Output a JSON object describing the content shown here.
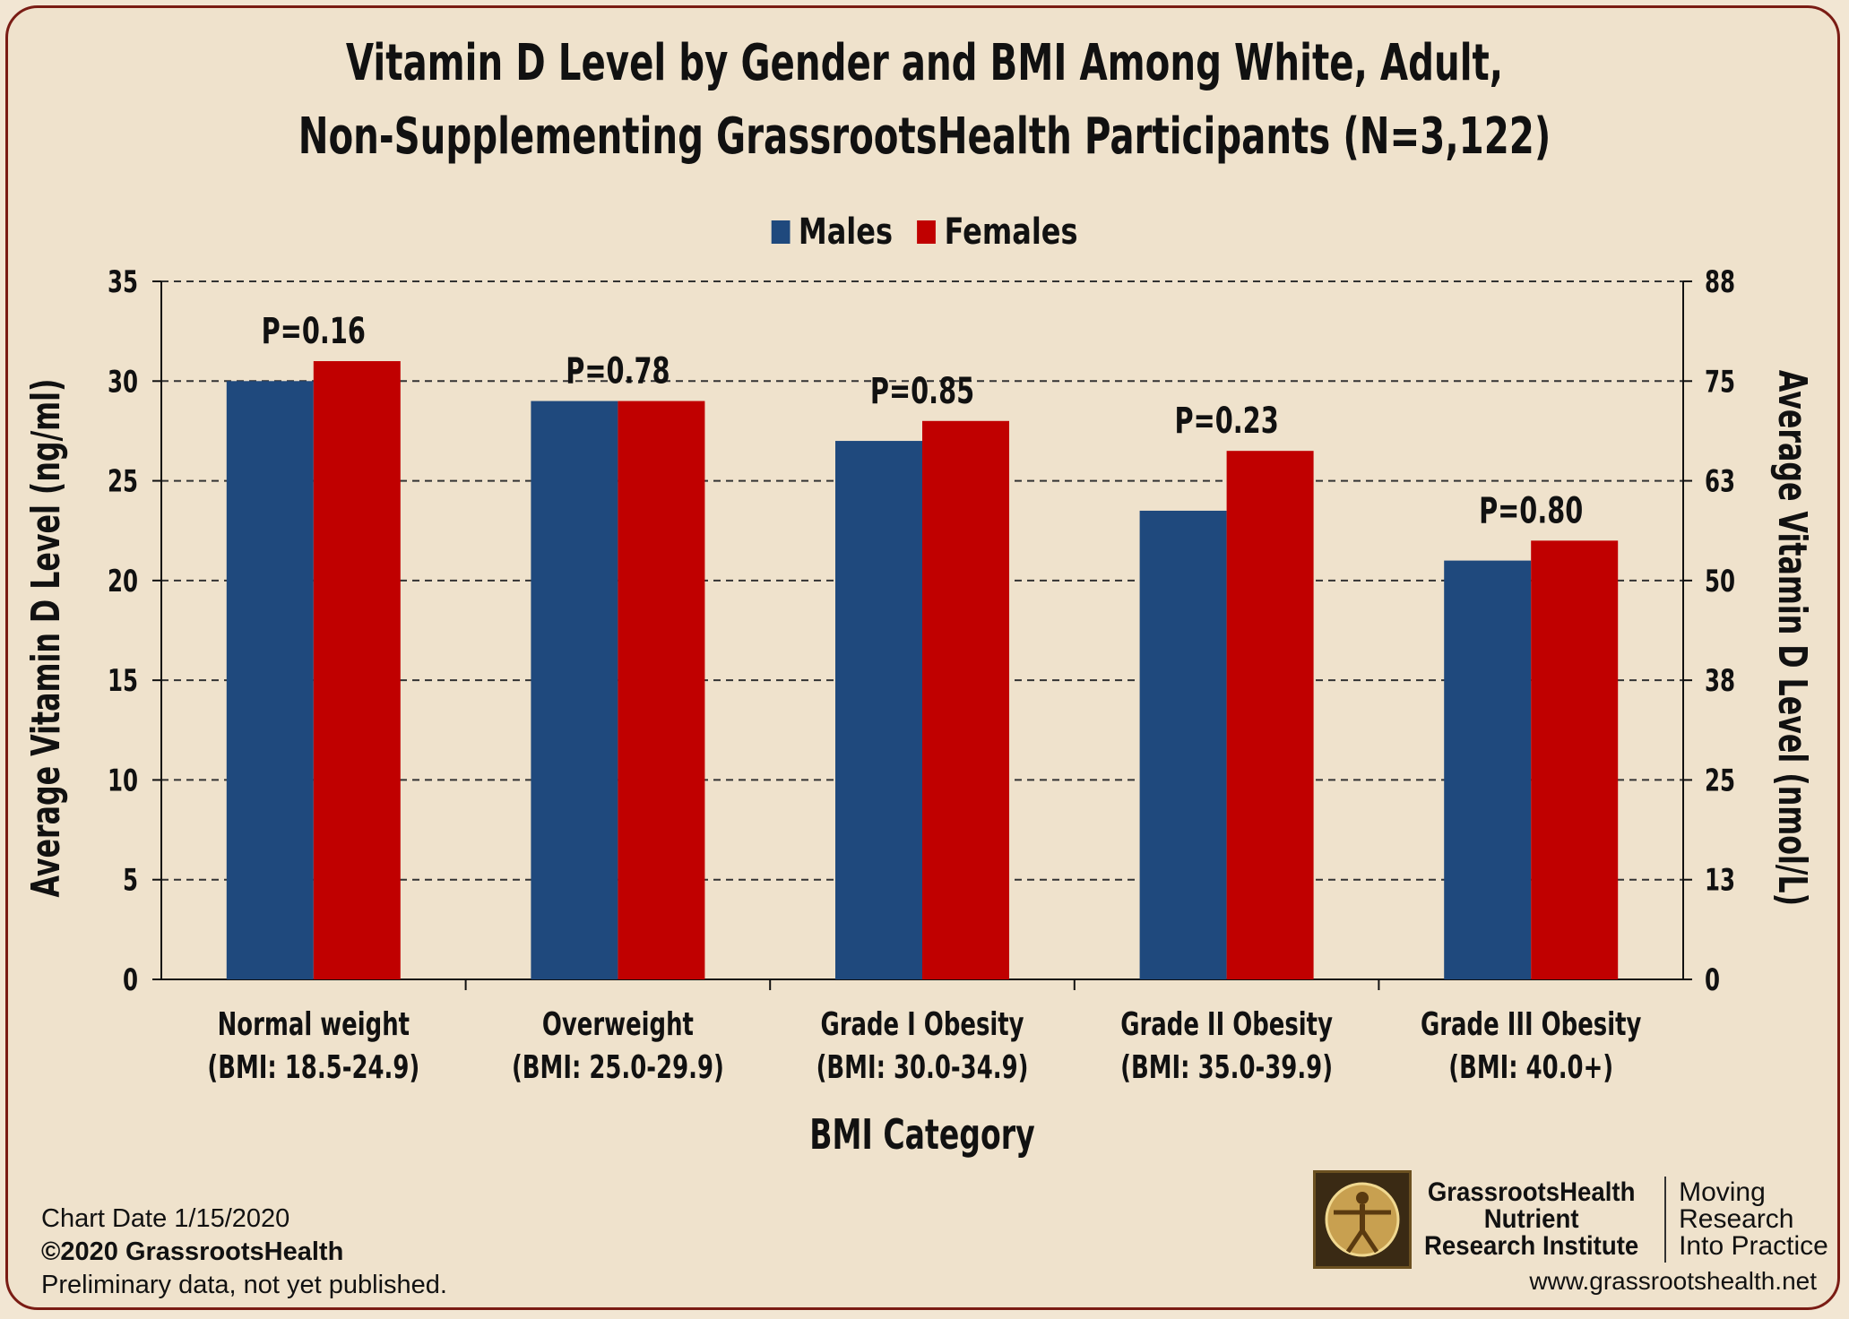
{
  "title_line1": "Vitamin D Level by Gender and BMI Among White, Adult,",
  "title_line2": "Non-Supplementing GrassrootsHealth Participants (N=3,122)",
  "colors": {
    "males": "#1f497d",
    "females": "#c00000",
    "background": "#efe2cc",
    "border": "#7a1c14"
  },
  "chart_data": {
    "type": "bar",
    "categories": [
      {
        "name": "Normal weight",
        "sub": "(BMI: 18.5-24.9)",
        "p": "P=0.16"
      },
      {
        "name": "Overweight",
        "sub": "(BMI: 25.0-29.9)",
        "p": "P=0.78"
      },
      {
        "name": "Grade I Obesity",
        "sub": "(BMI: 30.0-34.9)",
        "p": "P=0.85"
      },
      {
        "name": "Grade II Obesity",
        "sub": "(BMI: 35.0-39.9)",
        "p": "P=0.23"
      },
      {
        "name": "Grade III Obesity",
        "sub": "(BMI: 40.0+)",
        "p": "P=0.80"
      }
    ],
    "series": [
      {
        "name": "Males",
        "color": "#1f497d",
        "values": [
          30,
          29,
          27,
          23.5,
          21
        ]
      },
      {
        "name": "Females",
        "color": "#c00000",
        "values": [
          31,
          29,
          28,
          26.5,
          22
        ]
      }
    ],
    "xlabel": "BMI Category",
    "ylabel": "Average Vitamin D Level (ng/ml)",
    "ylabel_right": "Average Vitamin D Level (nmol/L)",
    "ylim": [
      0,
      35
    ],
    "yticks": [
      0,
      5,
      10,
      15,
      20,
      25,
      30,
      35
    ],
    "yticks_right": [
      "0",
      "13",
      "25",
      "38",
      "50",
      "63",
      "75",
      "88"
    ],
    "grid": "dashed horizontal",
    "legend": "top-center"
  },
  "footer": {
    "chart_date": "Chart Date 1/15/2020",
    "copyright": "©2020 GrassrootsHealth",
    "note": "Preliminary data, not yet published.",
    "logo_line1": "GrassrootsHealth",
    "logo_line2": "Nutrient",
    "logo_line3": "Research Institute",
    "tag_line1": "Moving",
    "tag_line2": "Research",
    "tag_line3": "Into Practice",
    "website": "www.grassrootshealth.net"
  }
}
